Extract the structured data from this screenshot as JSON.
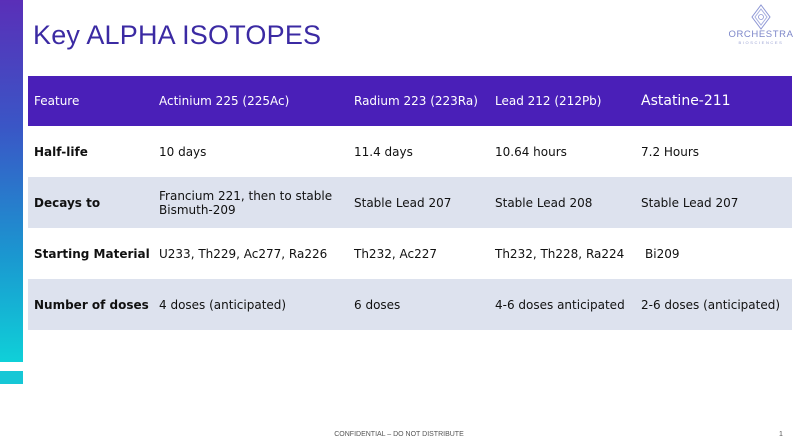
{
  "slide": {
    "title": "Key ALPHA ISOTOPES",
    "footer": "CONFIDENTIAL – DO NOT DISTRIBUTE",
    "page_number": "1"
  },
  "logo": {
    "name": "ORCHESTRA",
    "tagline": "BIOSCIENCES"
  },
  "colors": {
    "header_bg": "#4a1fb8",
    "title": "#3b2aa3",
    "row_shade": "#dde2ee"
  },
  "table": {
    "headers": [
      "Feature",
      "Actinium 225 (225Ac)",
      "Radium 223 (223Ra)",
      "Lead 212 (212Pb)",
      "Astatine-211"
    ],
    "rows": [
      [
        "Half-life",
        "10 days",
        "11.4 days",
        "10.64 hours",
        "7.2 Hours"
      ],
      [
        "Decays to",
        "Francium 221, then to stable Bismuth-209",
        "Stable Lead 207",
        "Stable Lead 208",
        "Stable Lead 207"
      ],
      [
        "Starting Material",
        "U233, Th229, Ac277, Ra226",
        "Th232, Ac227",
        "Th232, Th228, Ra224",
        "Bi209"
      ],
      [
        "Number of doses",
        "4 doses (anticipated)",
        "6 doses",
        "4-6 doses anticipated",
        "2-6 doses (anticipated)"
      ]
    ]
  }
}
